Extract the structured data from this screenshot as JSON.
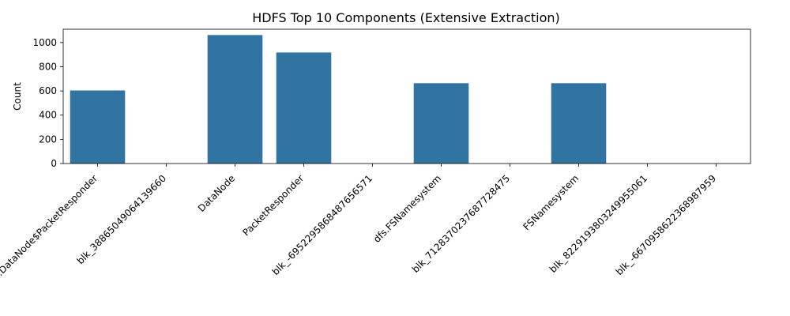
{
  "chart_data": {
    "type": "bar",
    "title": "HDFS Top 10 Components (Extensive Extraction)",
    "xlabel": "",
    "ylabel": "Count",
    "ylim": [
      0,
      1110
    ],
    "yticks": [
      0,
      200,
      400,
      600,
      800,
      1000
    ],
    "categories": [
      "dfs.DataNode$PacketResponder",
      "blk_38865049064139660",
      "DataNode",
      "PacketResponder",
      "blk_-6952295868487656571",
      "dfs.FSNamesystem",
      "blk_7128370237687728475",
      "FSNamesystem",
      "blk_8229193803249955061",
      "blk_-6670958622368987959"
    ],
    "values": [
      604,
      0,
      1062,
      918,
      0,
      664,
      0,
      664,
      0,
      0
    ],
    "bar_color": "#3274a1",
    "grid": false
  }
}
